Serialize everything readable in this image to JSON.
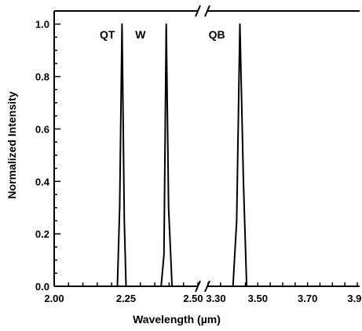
{
  "chart_data": {
    "type": "line",
    "title": "",
    "xlabel": "Wavelength (µm)",
    "ylabel": "Normalized Intensity",
    "ylim": [
      0.0,
      1.05
    ],
    "yticks": [
      {
        "value": 0.0,
        "label": "0.0"
      },
      {
        "value": 0.2,
        "label": "0.2"
      },
      {
        "value": 0.4,
        "label": "0.4"
      },
      {
        "value": 0.6,
        "label": "0.6"
      },
      {
        "value": 0.8,
        "label": "0.8"
      },
      {
        "value": 1.0,
        "label": "1.0"
      }
    ],
    "axis_break": {
      "left_range": [
        2.0,
        2.5
      ],
      "right_range": [
        3.3,
        3.9
      ]
    },
    "xticks_left": [
      {
        "value": 2.0,
        "label": "2.00"
      },
      {
        "value": 2.25,
        "label": "2.25"
      },
      {
        "value": 2.5,
        "label": "2.50"
      }
    ],
    "xticks_right": [
      {
        "value": 3.3,
        "label": "3.30"
      },
      {
        "value": 3.5,
        "label": "3.50"
      },
      {
        "value": 3.7,
        "label": "3.70"
      },
      {
        "value": 3.9,
        "label": "3.90"
      }
    ],
    "series": [
      {
        "name": "QT",
        "x": [
          2.0,
          2.22,
          2.228,
          2.236,
          2.244,
          2.25,
          2.5
        ],
        "y": [
          0.0,
          0.0,
          0.3,
          1.0,
          0.25,
          0.0,
          0.0
        ]
      },
      {
        "name": "W",
        "x": [
          2.0,
          2.372,
          2.382,
          2.39,
          2.398,
          2.41,
          2.5
        ],
        "y": [
          0.0,
          0.0,
          0.12,
          1.0,
          0.3,
          0.0,
          0.0
        ]
      },
      {
        "name": "QB",
        "x": [
          3.3,
          3.4,
          3.415,
          3.428,
          3.442,
          3.455,
          3.9
        ],
        "y": [
          0.0,
          0.0,
          0.25,
          1.0,
          0.4,
          0.0,
          0.0
        ]
      }
    ],
    "peak_labels": [
      {
        "text": "QT",
        "x": 2.185,
        "y": 0.96
      },
      {
        "text": "W",
        "x": 2.3,
        "y": 0.96
      },
      {
        "text": "QB",
        "x": 3.335,
        "y": 0.96
      }
    ],
    "grid": false,
    "colors": {
      "line": "#000000",
      "axis": "#000000"
    }
  }
}
